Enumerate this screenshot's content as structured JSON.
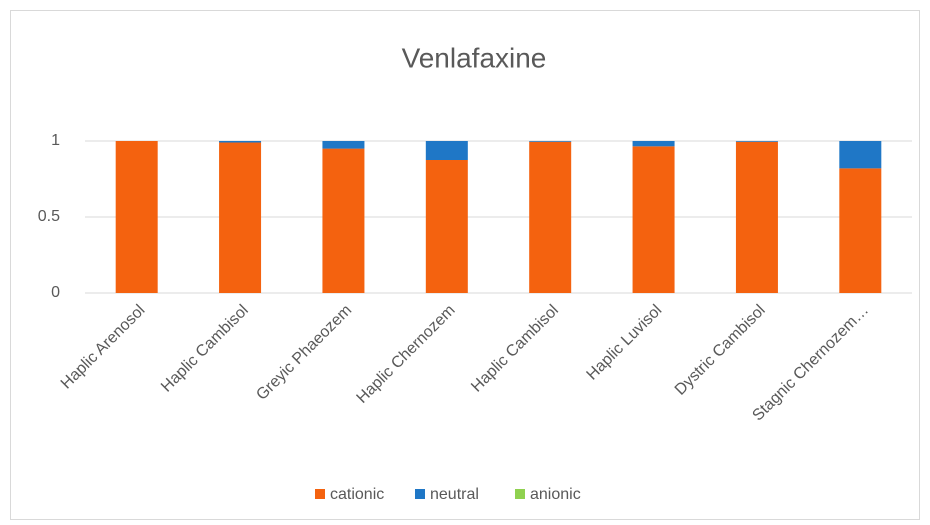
{
  "chart_data": {
    "type": "stacked_bar",
    "title": "Venlafaxine",
    "categories": [
      "Haplic Arenosol",
      "Haplic Cambisol",
      "Greyic Phaeozem",
      "Haplic Chernozem",
      "Haplic Cambisol",
      "Haplic Luvisol",
      "Dystric Cambisol",
      "Stagnic Chernozem…"
    ],
    "series": [
      {
        "name": "cationic",
        "color": "#f4620f",
        "values": [
          1.0,
          0.99,
          0.95,
          0.875,
          0.995,
          0.965,
          0.995,
          0.82
        ]
      },
      {
        "name": "neutral",
        "color": "#1f77c6",
        "values": [
          0,
          0.01,
          0.05,
          0.125,
          0.005,
          0.035,
          0.005,
          0.18
        ]
      },
      {
        "name": "anionic",
        "color": "#8fd14f",
        "values": [
          0,
          0,
          0,
          0,
          0,
          0,
          0,
          0
        ]
      }
    ],
    "ylim": [
      0,
      1
    ],
    "yticks": [
      0,
      0.5,
      1
    ],
    "grid": true,
    "legend": "bottom"
  }
}
